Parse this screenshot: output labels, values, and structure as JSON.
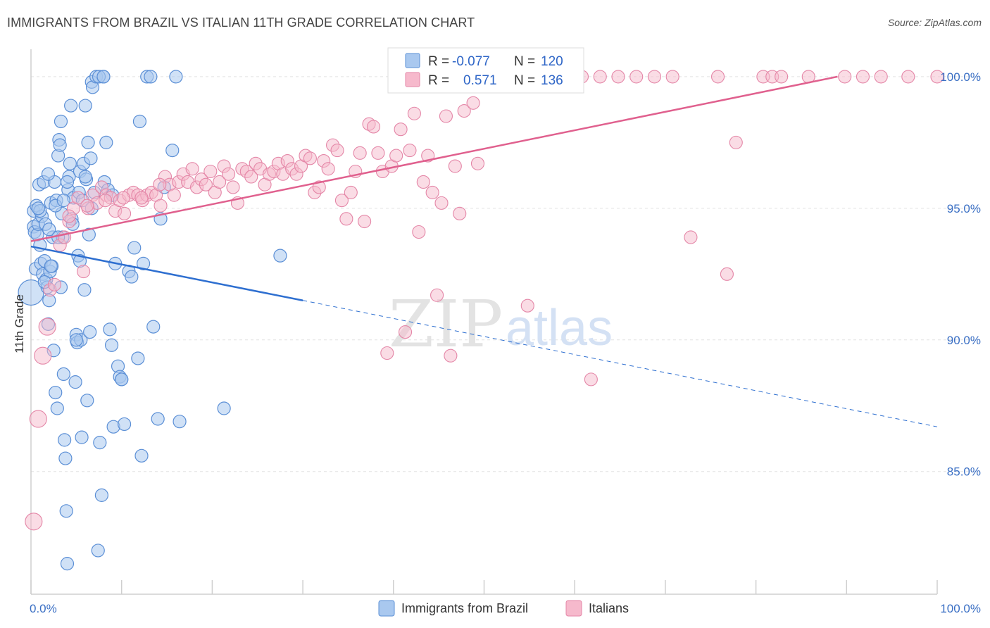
{
  "title": "IMMIGRANTS FROM BRAZIL VS ITALIAN 11TH GRADE CORRELATION CHART",
  "source": "Source: ZipAtlas.com",
  "watermark": {
    "zip": "ZIP",
    "atlas": "atlas"
  },
  "colors": {
    "brazil_fill": "#a9c8ef",
    "brazil_stroke": "#5b8fd6",
    "brazil_line": "#2e6fd0",
    "italian_fill": "#f6b9cc",
    "italian_stroke": "#e486a7",
    "italian_line": "#e0608e",
    "grid": "#e2e2e2",
    "axis_text": "#3a6fc4"
  },
  "legend": {
    "r_label": "R =",
    "n_label": "N =",
    "series": [
      {
        "r": "-0.077",
        "n": "120"
      },
      {
        "r": "0.571",
        "n": "136"
      }
    ]
  },
  "chart_data": {
    "type": "scatter",
    "title": "IMMIGRANTS FROM BRAZIL VS ITALIAN 11TH GRADE CORRELATION CHART",
    "xlabel": "",
    "ylabel": "11th Grade",
    "xlim": [
      0,
      100
    ],
    "ylim": [
      80.5,
      100.8
    ],
    "x_tick_labels": [
      "0.0%",
      "100.0%"
    ],
    "y_ticks": [
      85,
      90,
      95,
      100
    ],
    "y_tick_labels": [
      "85.0%",
      "90.0%",
      "95.0%",
      "100.0%"
    ],
    "grid": true,
    "legend_position": "top-center",
    "series": [
      {
        "name": "Immigrants from Brazil",
        "color": "#a9c8ef",
        "trend": {
          "x": [
            0,
            30,
            100
          ],
          "y": [
            93.55,
            91.5,
            86.7
          ],
          "solid_until": 30
        },
        "points": [
          [
            0,
            91.8
          ],
          [
            0.3,
            94.3
          ],
          [
            0.3,
            94.9
          ],
          [
            0.4,
            94.1
          ],
          [
            0.5,
            92.7
          ],
          [
            0.6,
            95.1
          ],
          [
            0.7,
            94.0
          ],
          [
            0.8,
            94.4
          ],
          [
            0.9,
            95.9
          ],
          [
            1.0,
            93.6
          ],
          [
            1.1,
            92.9
          ],
          [
            1.2,
            94.7
          ],
          [
            1.3,
            92.5
          ],
          [
            1.4,
            96.0
          ],
          [
            1.5,
            93.0
          ],
          [
            1.6,
            94.4
          ],
          [
            1.7,
            92.3
          ],
          [
            1.8,
            92.0
          ],
          [
            1.9,
            90.6
          ],
          [
            2.0,
            91.5
          ],
          [
            2.1,
            92.6
          ],
          [
            2.2,
            95.2
          ],
          [
            2.3,
            92.8
          ],
          [
            2.4,
            93.9
          ],
          [
            2.5,
            89.6
          ],
          [
            2.6,
            96.0
          ],
          [
            2.7,
            88.0
          ],
          [
            2.8,
            95.3
          ],
          [
            2.9,
            87.4
          ],
          [
            3.0,
            97.0
          ],
          [
            3.1,
            97.6
          ],
          [
            3.2,
            97.4
          ],
          [
            3.3,
            98.3
          ],
          [
            3.4,
            94.8
          ],
          [
            3.5,
            93.9
          ],
          [
            3.6,
            88.7
          ],
          [
            3.7,
            86.2
          ],
          [
            3.8,
            85.5
          ],
          [
            3.9,
            83.5
          ],
          [
            4.0,
            81.5
          ],
          [
            4.1,
            95.7
          ],
          [
            4.2,
            96.2
          ],
          [
            4.3,
            96.7
          ],
          [
            4.4,
            98.9
          ],
          [
            4.5,
            94.6
          ],
          [
            4.7,
            95.4
          ],
          [
            4.9,
            88.4
          ],
          [
            5.0,
            90.2
          ],
          [
            5.1,
            89.9
          ],
          [
            5.2,
            93.2
          ],
          [
            5.3,
            95.6
          ],
          [
            5.4,
            96.4
          ],
          [
            5.5,
            90.0
          ],
          [
            5.6,
            86.3
          ],
          [
            5.7,
            95.3
          ],
          [
            5.8,
            96.7
          ],
          [
            5.9,
            91.9
          ],
          [
            6.0,
            98.9
          ],
          [
            6.1,
            96.1
          ],
          [
            6.2,
            87.7
          ],
          [
            6.3,
            97.5
          ],
          [
            6.4,
            94.0
          ],
          [
            6.5,
            90.3
          ],
          [
            6.6,
            96.9
          ],
          [
            6.7,
            99.8
          ],
          [
            6.8,
            99.6
          ],
          [
            7.0,
            95.6
          ],
          [
            7.2,
            100.0
          ],
          [
            7.4,
            82.0
          ],
          [
            7.6,
            86.1
          ],
          [
            7.8,
            84.1
          ],
          [
            8.0,
            100.0
          ],
          [
            8.1,
            96.0
          ],
          [
            8.3,
            97.5
          ],
          [
            8.5,
            95.7
          ],
          [
            8.7,
            90.4
          ],
          [
            8.9,
            89.8
          ],
          [
            9.1,
            86.7
          ],
          [
            9.3,
            92.9
          ],
          [
            9.6,
            89.0
          ],
          [
            9.8,
            88.6
          ],
          [
            10.0,
            88.5
          ],
          [
            10.3,
            86.8
          ],
          [
            10.8,
            92.6
          ],
          [
            11.1,
            92.4
          ],
          [
            11.4,
            93.5
          ],
          [
            11.8,
            89.3
          ],
          [
            12.0,
            98.3
          ],
          [
            12.2,
            85.6
          ],
          [
            12.4,
            92.9
          ],
          [
            12.8,
            100.0
          ],
          [
            13.2,
            100.0
          ],
          [
            13.5,
            90.5
          ],
          [
            14.0,
            87.0
          ],
          [
            14.3,
            94.6
          ],
          [
            14.7,
            95.8
          ],
          [
            15.6,
            97.2
          ],
          [
            16.0,
            100.0
          ],
          [
            16.4,
            86.9
          ],
          [
            21.3,
            87.4
          ],
          [
            27.5,
            93.2
          ],
          [
            1.0,
            94.9
          ],
          [
            2.0,
            94.2
          ],
          [
            3.0,
            93.9
          ],
          [
            4.0,
            96.0
          ],
          [
            5.0,
            90.0
          ],
          [
            6.0,
            96.2
          ],
          [
            7.5,
            100.0
          ],
          [
            8.0,
            100.0
          ],
          [
            9.0,
            95.5
          ],
          [
            10.0,
            88.5
          ],
          [
            1.5,
            92.2
          ],
          [
            2.2,
            92.8
          ],
          [
            3.3,
            92.0
          ],
          [
            4.6,
            94.4
          ],
          [
            5.4,
            93.0
          ],
          [
            6.7,
            95.0
          ],
          [
            0.8,
            95.0
          ],
          [
            1.9,
            96.3
          ],
          [
            2.7,
            95.1
          ],
          [
            3.6,
            95.3
          ]
        ]
      },
      {
        "name": "Italians",
        "color": "#f6b9cc",
        "trend": {
          "x": [
            0,
            89
          ],
          "y": [
            93.75,
            100.0
          ]
        },
        "points": [
          [
            0.3,
            83.1
          ],
          [
            0.8,
            87.0
          ],
          [
            1.3,
            89.4
          ],
          [
            1.8,
            90.5
          ],
          [
            2.1,
            91.9
          ],
          [
            2.6,
            92.1
          ],
          [
            3.2,
            93.6
          ],
          [
            3.7,
            93.9
          ],
          [
            4.2,
            94.5
          ],
          [
            4.7,
            95.0
          ],
          [
            5.2,
            95.4
          ],
          [
            5.8,
            92.6
          ],
          [
            6.3,
            95.0
          ],
          [
            6.8,
            95.5
          ],
          [
            7.3,
            95.2
          ],
          [
            7.8,
            95.8
          ],
          [
            8.3,
            95.5
          ],
          [
            8.8,
            95.4
          ],
          [
            9.3,
            94.9
          ],
          [
            9.8,
            95.3
          ],
          [
            10.3,
            94.8
          ],
          [
            10.8,
            95.5
          ],
          [
            11.3,
            95.6
          ],
          [
            11.8,
            95.5
          ],
          [
            12.3,
            95.3
          ],
          [
            12.8,
            95.5
          ],
          [
            13.3,
            95.6
          ],
          [
            13.8,
            95.5
          ],
          [
            14.3,
            95.1
          ],
          [
            14.8,
            96.2
          ],
          [
            15.3,
            95.9
          ],
          [
            15.8,
            95.5
          ],
          [
            16.3,
            96.0
          ],
          [
            16.8,
            96.3
          ],
          [
            17.3,
            96.0
          ],
          [
            17.8,
            96.5
          ],
          [
            18.3,
            95.8
          ],
          [
            18.8,
            96.1
          ],
          [
            19.3,
            95.9
          ],
          [
            19.8,
            96.4
          ],
          [
            20.3,
            95.6
          ],
          [
            20.8,
            96.0
          ],
          [
            21.3,
            96.6
          ],
          [
            21.8,
            96.3
          ],
          [
            22.3,
            95.8
          ],
          [
            22.8,
            95.2
          ],
          [
            23.3,
            96.5
          ],
          [
            23.8,
            96.4
          ],
          [
            24.3,
            96.2
          ],
          [
            24.8,
            96.7
          ],
          [
            25.3,
            96.5
          ],
          [
            25.8,
            95.9
          ],
          [
            26.3,
            96.3
          ],
          [
            26.8,
            96.4
          ],
          [
            27.3,
            96.7
          ],
          [
            27.8,
            96.3
          ],
          [
            28.3,
            96.8
          ],
          [
            28.8,
            96.5
          ],
          [
            29.3,
            96.3
          ],
          [
            29.8,
            96.6
          ],
          [
            30.3,
            97.0
          ],
          [
            30.8,
            96.9
          ],
          [
            31.3,
            95.6
          ],
          [
            31.8,
            95.8
          ],
          [
            32.3,
            96.8
          ],
          [
            32.8,
            96.5
          ],
          [
            33.3,
            97.4
          ],
          [
            33.8,
            97.2
          ],
          [
            34.3,
            95.3
          ],
          [
            34.8,
            94.6
          ],
          [
            35.3,
            95.6
          ],
          [
            35.8,
            96.4
          ],
          [
            36.3,
            97.1
          ],
          [
            36.8,
            94.5
          ],
          [
            37.3,
            98.2
          ],
          [
            37.8,
            98.1
          ],
          [
            38.3,
            97.1
          ],
          [
            38.8,
            96.4
          ],
          [
            39.3,
            89.5
          ],
          [
            39.8,
            96.6
          ],
          [
            40.3,
            97.0
          ],
          [
            40.8,
            98.0
          ],
          [
            41.3,
            90.3
          ],
          [
            41.8,
            97.2
          ],
          [
            42.3,
            98.6
          ],
          [
            42.8,
            94.1
          ],
          [
            43.3,
            96.0
          ],
          [
            43.8,
            97.0
          ],
          [
            44.3,
            95.6
          ],
          [
            44.8,
            91.7
          ],
          [
            45.3,
            95.2
          ],
          [
            45.8,
            98.5
          ],
          [
            46.3,
            89.4
          ],
          [
            46.8,
            96.6
          ],
          [
            47.3,
            94.8
          ],
          [
            47.8,
            98.7
          ],
          [
            48.3,
            99.7
          ],
          [
            48.8,
            99.0
          ],
          [
            49.3,
            96.7
          ],
          [
            50.3,
            100.0
          ],
          [
            51.3,
            99.8
          ],
          [
            52.3,
            100.0
          ],
          [
            53.3,
            100.0
          ],
          [
            54.8,
            91.3
          ],
          [
            55.8,
            100.0
          ],
          [
            56.8,
            99.9
          ],
          [
            58.8,
            100.0
          ],
          [
            60.8,
            100.0
          ],
          [
            61.8,
            88.5
          ],
          [
            62.8,
            100.0
          ],
          [
            64.8,
            100.0
          ],
          [
            66.8,
            100.0
          ],
          [
            68.8,
            100.0
          ],
          [
            70.8,
            100.0
          ],
          [
            72.8,
            93.9
          ],
          [
            75.8,
            100.0
          ],
          [
            76.8,
            92.5
          ],
          [
            80.8,
            100.0
          ],
          [
            81.8,
            100.0
          ],
          [
            82.8,
            100.0
          ],
          [
            85.8,
            100.0
          ],
          [
            89.8,
            100.0
          ],
          [
            91.8,
            100.0
          ],
          [
            93.8,
            100.0
          ],
          [
            96.8,
            100.0
          ],
          [
            100,
            100.0
          ],
          [
            77.8,
            97.5
          ],
          [
            4.2,
            94.7
          ],
          [
            6.2,
            95.1
          ],
          [
            8.2,
            95.3
          ],
          [
            10.2,
            95.4
          ],
          [
            12.2,
            95.4
          ],
          [
            14.2,
            95.9
          ]
        ]
      }
    ]
  }
}
